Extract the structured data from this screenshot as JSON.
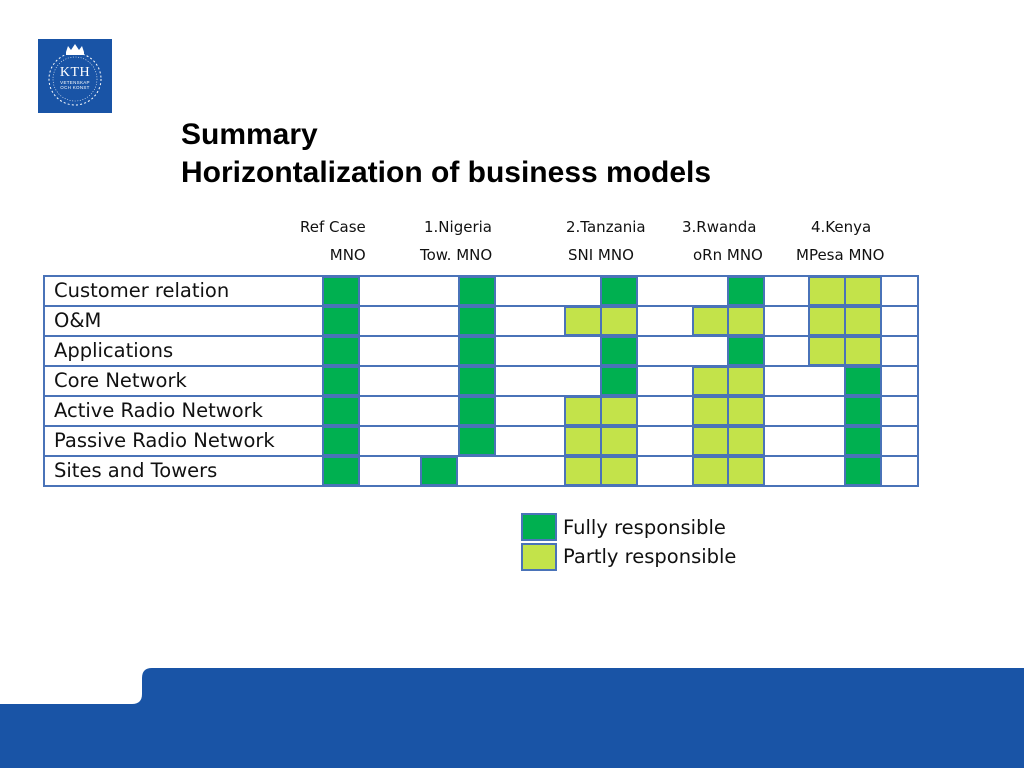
{
  "logo": {
    "name": "KTH",
    "line1": "VETENSKAP",
    "line2": "OCH KONST"
  },
  "title": {
    "line1": "Summary",
    "line2": "Horizontalization of business models"
  },
  "columns": [
    {
      "line1": "Ref Case",
      "line2": "MNO"
    },
    {
      "line1": "1.Nigeria",
      "line2": "Tow. MNO"
    },
    {
      "line1": "2.Tanzania",
      "line2": "SNI MNO"
    },
    {
      "line1": "3.Rwanda",
      "line2": "oRn MNO"
    },
    {
      "line1": "4.Kenya",
      "line2": "MPesa  MNO"
    }
  ],
  "rows": [
    "Customer relation",
    "O&M",
    "Applications",
    "Core Network",
    "Active Radio Network",
    "Passive Radio Network",
    "Sites and Towers"
  ],
  "responsibility": {
    "Ref Case": [
      "full",
      "full",
      "full",
      "full",
      "full",
      "full",
      "full"
    ],
    "Nigeria MNO": [
      "full",
      "full",
      "full",
      "full",
      "full",
      "full",
      "none"
    ],
    "Nigeria Tower": [
      "none",
      "none",
      "none",
      "none",
      "none",
      "none",
      "full"
    ],
    "Tanzania A": [
      "none",
      "partial",
      "none",
      "none",
      "partial",
      "partial",
      "partial"
    ],
    "Tanzania B": [
      "full",
      "partial",
      "full",
      "full",
      "partial",
      "partial",
      "partial"
    ],
    "Rwanda A": [
      "none",
      "partial",
      "none",
      "partial",
      "partial",
      "partial",
      "partial"
    ],
    "Rwanda B": [
      "full",
      "partial",
      "full",
      "partial",
      "partial",
      "partial",
      "partial"
    ],
    "Kenya A": [
      "partial",
      "partial",
      "partial",
      "none",
      "none",
      "none",
      "none"
    ],
    "Kenya B": [
      "partial",
      "partial",
      "partial",
      "full",
      "full",
      "full",
      "full"
    ]
  },
  "legend": {
    "full": "Fully responsible",
    "partial": "Partly responsible"
  },
  "colors": {
    "full": "#00b050",
    "partial": "#c3e34a",
    "border": "#4a73b8",
    "brand": "#1954a6"
  }
}
